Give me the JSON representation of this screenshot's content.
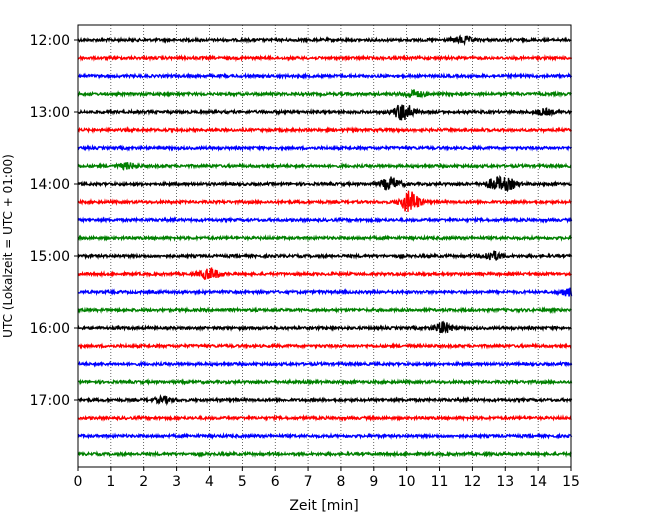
{
  "chart_data": {
    "type": "line",
    "subtype": "helicorder",
    "xlabel": "Zeit  [min]",
    "ylabel": "UTC (Lokalzeit = UTC + 01:00)",
    "xlim": [
      0,
      15
    ],
    "x_ticks": [
      "0",
      "1",
      "2",
      "3",
      "4",
      "5",
      "6",
      "7",
      "8",
      "9",
      "10",
      "11",
      "12",
      "13",
      "14",
      "15"
    ],
    "y_tick_labels": [
      "12:00",
      "13:00",
      "14:00",
      "15:00",
      "16:00",
      "17:00"
    ],
    "grid": "vertical dotted",
    "trace_colors": [
      "#000000",
      "#ff0000",
      "#0000ff",
      "#008000"
    ],
    "traces": [
      {
        "start": "12:00",
        "color": "#000000",
        "events": [
          {
            "x": 11.7,
            "amp": 0.35
          }
        ]
      },
      {
        "start": "12:15",
        "color": "#ff0000",
        "events": []
      },
      {
        "start": "12:30",
        "color": "#0000ff",
        "events": []
      },
      {
        "start": "12:45",
        "color": "#008000",
        "events": [
          {
            "x": 10.2,
            "amp": 0.4
          }
        ]
      },
      {
        "start": "13:00",
        "color": "#000000",
        "events": [
          {
            "x": 9.9,
            "amp": 1.0
          },
          {
            "x": 14.2,
            "amp": 0.3
          }
        ]
      },
      {
        "start": "13:15",
        "color": "#ff0000",
        "events": []
      },
      {
        "start": "13:30",
        "color": "#0000ff",
        "events": []
      },
      {
        "start": "13:45",
        "color": "#008000",
        "events": [
          {
            "x": 1.5,
            "amp": 0.3
          }
        ]
      },
      {
        "start": "14:00",
        "color": "#000000",
        "events": [
          {
            "x": 9.5,
            "amp": 0.7
          },
          {
            "x": 12.7,
            "amp": 0.6
          },
          {
            "x": 13.1,
            "amp": 0.5
          }
        ]
      },
      {
        "start": "14:15",
        "color": "#ff0000",
        "events": [
          {
            "x": 10.1,
            "amp": 1.2
          }
        ]
      },
      {
        "start": "14:30",
        "color": "#0000ff",
        "events": []
      },
      {
        "start": "14:45",
        "color": "#008000",
        "events": []
      },
      {
        "start": "15:00",
        "color": "#000000",
        "events": [
          {
            "x": 12.6,
            "amp": 0.5
          }
        ]
      },
      {
        "start": "15:15",
        "color": "#ff0000",
        "events": [
          {
            "x": 4.0,
            "amp": 0.6
          }
        ]
      },
      {
        "start": "15:30",
        "color": "#0000ff",
        "events": [
          {
            "x": 14.9,
            "amp": 0.4
          }
        ]
      },
      {
        "start": "15:45",
        "color": "#008000",
        "events": []
      },
      {
        "start": "16:00",
        "color": "#000000",
        "events": [
          {
            "x": 11.1,
            "amp": 0.6
          }
        ]
      },
      {
        "start": "16:15",
        "color": "#ff0000",
        "events": []
      },
      {
        "start": "16:30",
        "color": "#0000ff",
        "events": []
      },
      {
        "start": "16:45",
        "color": "#008000",
        "events": []
      },
      {
        "start": "17:00",
        "color": "#000000",
        "events": [
          {
            "x": 2.6,
            "amp": 0.3
          }
        ]
      },
      {
        "start": "17:15",
        "color": "#ff0000",
        "events": []
      },
      {
        "start": "17:30",
        "color": "#0000ff",
        "events": []
      },
      {
        "start": "17:45",
        "color": "#008000",
        "events": []
      }
    ]
  }
}
